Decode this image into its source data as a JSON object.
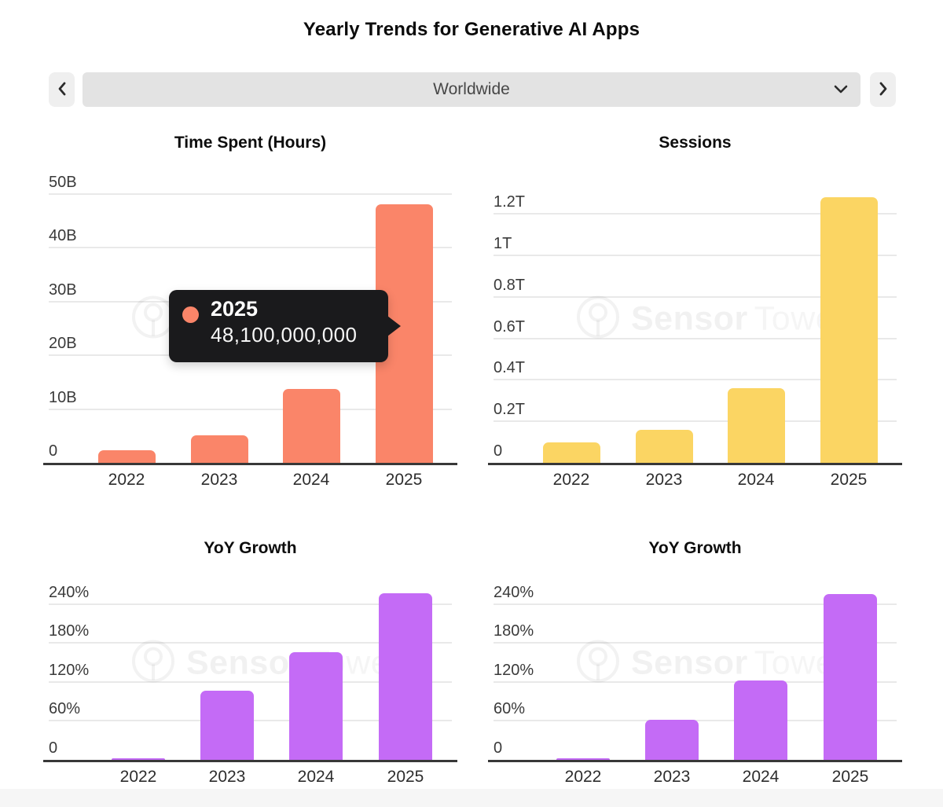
{
  "page": {
    "title": "Yearly Trends for Generative AI Apps"
  },
  "controls": {
    "region_selector": {
      "value": "Worldwide",
      "chevron_icon": "chevron-down"
    },
    "prev_icon": "chevron-left",
    "next_icon": "chevron-right"
  },
  "watermark": {
    "brand_word1": "Sensor",
    "brand_word2": "Tower",
    "logo_icon": "sensor-tower-logo"
  },
  "tooltip": {
    "year": "2025",
    "value": "48,100,000,000",
    "series_color": "#fa8569"
  },
  "colors": {
    "time_spent_bar": "#fa8569",
    "sessions_bar": "#fbd563",
    "growth_bar": "#c46bf6",
    "tooltip_bg": "#1a1a1c",
    "gridline": "#e9e9e9",
    "axis_line": "#383838"
  },
  "chart_data": [
    {
      "type": "bar",
      "title": "Time Spent (Hours)",
      "categories": [
        "2022",
        "2023",
        "2024",
        "2025"
      ],
      "values": [
        2.3,
        5.1,
        13.8,
        48.1
      ],
      "unit": "B",
      "yticks": [
        {
          "value": 0,
          "label": "0"
        },
        {
          "value": 10,
          "label": "10B"
        },
        {
          "value": 20,
          "label": "20B"
        },
        {
          "value": 30,
          "label": "30B"
        },
        {
          "value": 40,
          "label": "40B"
        },
        {
          "value": 50,
          "label": "50B"
        }
      ],
      "ylim": [
        0,
        50
      ],
      "grid": true,
      "legend": false,
      "bar_color": "#fa8569",
      "highlighted": {
        "category": "2025",
        "exact_value": "48,100,000,000"
      }
    },
    {
      "type": "bar",
      "title": "Sessions",
      "categories": [
        "2022",
        "2023",
        "2024",
        "2025"
      ],
      "values": [
        0.1,
        0.16,
        0.36,
        1.28
      ],
      "unit": "T",
      "yticks": [
        {
          "value": 0,
          "label": "0"
        },
        {
          "value": 0.2,
          "label": "0.2T"
        },
        {
          "value": 0.4,
          "label": "0.4T"
        },
        {
          "value": 0.6,
          "label": "0.6T"
        },
        {
          "value": 0.8,
          "label": "0.8T"
        },
        {
          "value": 1.0,
          "label": "1T"
        },
        {
          "value": 1.2,
          "label": "1.2T"
        }
      ],
      "ylim": [
        0,
        1.2
      ],
      "grid": true,
      "legend": false,
      "bar_color": "#fbd563"
    },
    {
      "type": "bar",
      "title": "YoY Growth",
      "categories": [
        "2022",
        "2023",
        "2024",
        "2025"
      ],
      "values": [
        2,
        107,
        166,
        257
      ],
      "unit": "%",
      "yticks": [
        {
          "value": 0,
          "label": "0"
        },
        {
          "value": 60,
          "label": "60%"
        },
        {
          "value": 120,
          "label": "120%"
        },
        {
          "value": 180,
          "label": "180%"
        },
        {
          "value": 240,
          "label": "240%"
        }
      ],
      "ylim": [
        0,
        240
      ],
      "grid": true,
      "legend": false,
      "bar_color": "#c46bf6"
    },
    {
      "type": "bar",
      "title": "YoY Growth",
      "categories": [
        "2022",
        "2023",
        "2024",
        "2025"
      ],
      "values": [
        2,
        62,
        122,
        255
      ],
      "unit": "%",
      "yticks": [
        {
          "value": 0,
          "label": "0"
        },
        {
          "value": 60,
          "label": "60%"
        },
        {
          "value": 120,
          "label": "120%"
        },
        {
          "value": 180,
          "label": "180%"
        },
        {
          "value": 240,
          "label": "240%"
        }
      ],
      "ylim": [
        0,
        240
      ],
      "grid": true,
      "legend": false,
      "bar_color": "#c46bf6"
    }
  ]
}
